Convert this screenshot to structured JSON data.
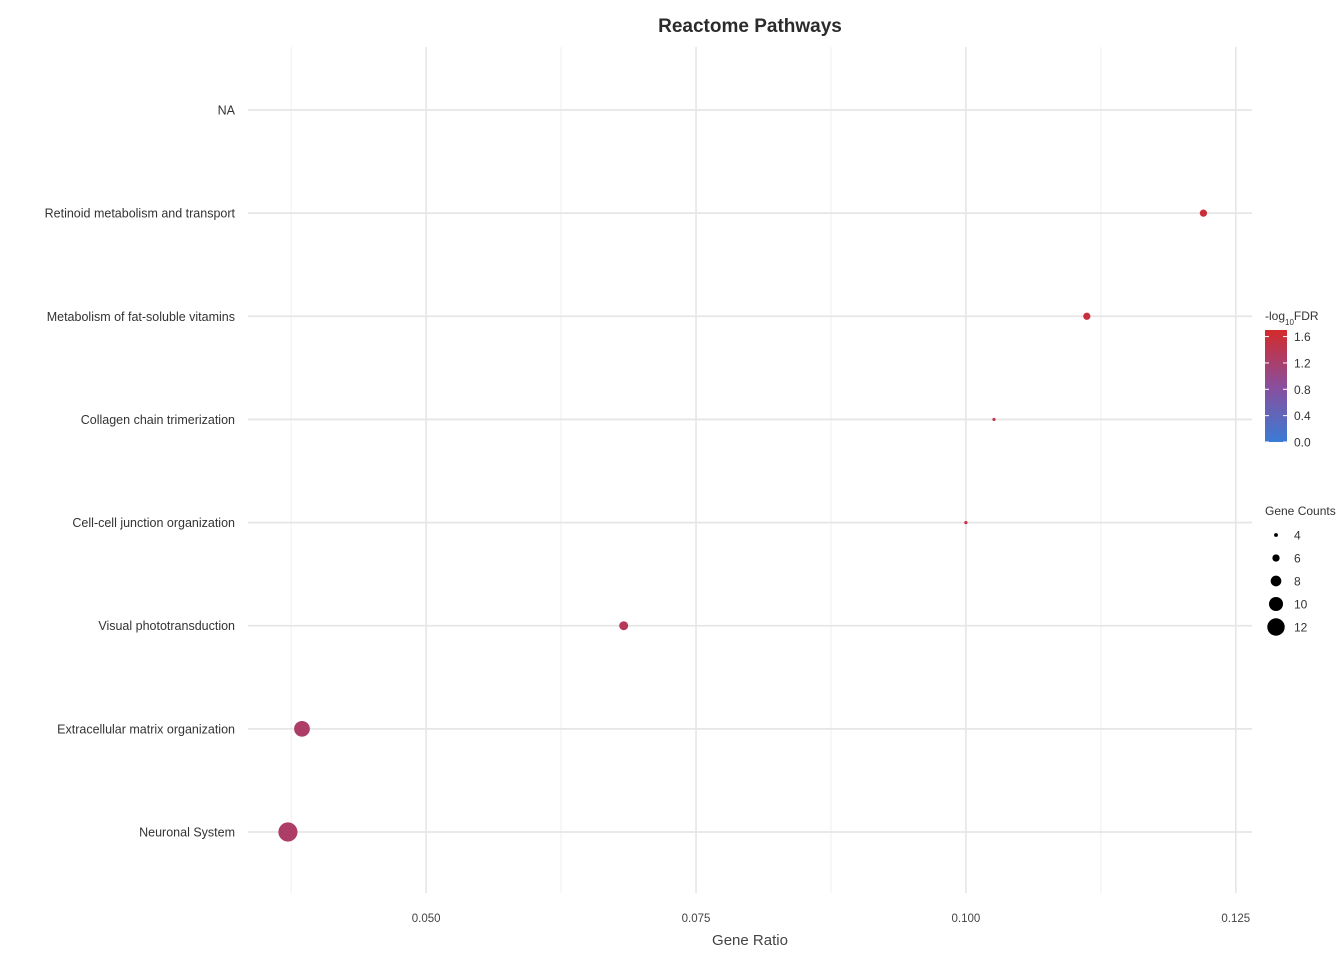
{
  "chart_data": {
    "type": "scatter",
    "title": "Reactome Pathways",
    "xlabel": "Gene Ratio",
    "ylabel": "",
    "xlim": [
      0.0335,
      0.1265
    ],
    "x_ticks": [
      0.05,
      0.075,
      0.1,
      0.125
    ],
    "x_tick_labels": [
      "0.050",
      "0.075",
      "0.100",
      "0.125"
    ],
    "grid": true,
    "categories": [
      "Neuronal System",
      "Extracellular matrix organization",
      "Visual phototransduction",
      "Cell-cell junction organization",
      "Collagen chain trimerization",
      "Metabolism of fat-soluble vitamins",
      "Retinoid metabolism and transport",
      "NA"
    ],
    "points": [
      {
        "category": "Neuronal System",
        "x": 0.0372,
        "count": 13,
        "neg_log10_fdr": 1.25
      },
      {
        "category": "Extracellular matrix organization",
        "x": 0.0385,
        "count": 11,
        "neg_log10_fdr": 1.25
      },
      {
        "category": "Visual phototransduction",
        "x": 0.0683,
        "count": 7,
        "neg_log10_fdr": 1.35
      },
      {
        "category": "Cell-cell junction organization",
        "x": 0.1,
        "count": 3.5,
        "neg_log10_fdr": 1.5
      },
      {
        "category": "Collagen chain trimerization",
        "x": 0.1026,
        "count": 3.5,
        "neg_log10_fdr": 1.45
      },
      {
        "category": "Metabolism of fat-soluble vitamins",
        "x": 0.1112,
        "count": 6,
        "neg_log10_fdr": 1.55
      },
      {
        "category": "Retinoid metabolism and transport",
        "x": 0.122,
        "count": 6,
        "neg_log10_fdr": 1.6
      }
    ],
    "color_legend": {
      "title_prefix": "-log",
      "title_sub": "10",
      "title_suffix": "FDR",
      "ticks": [
        0.0,
        0.4,
        0.8,
        1.2,
        1.6
      ],
      "tick_labels": [
        "0.0",
        "0.4",
        "0.8",
        "1.2",
        "1.6"
      ],
      "range": [
        0.0,
        1.7
      ],
      "low_color": "#3a7bd5",
      "high_color": "#d42a2a"
    },
    "size_legend": {
      "title": "Gene Counts",
      "values": [
        4,
        6,
        8,
        10,
        12
      ],
      "labels": [
        "4",
        "6",
        "8",
        "10",
        "12"
      ]
    },
    "legend_position": "right"
  }
}
